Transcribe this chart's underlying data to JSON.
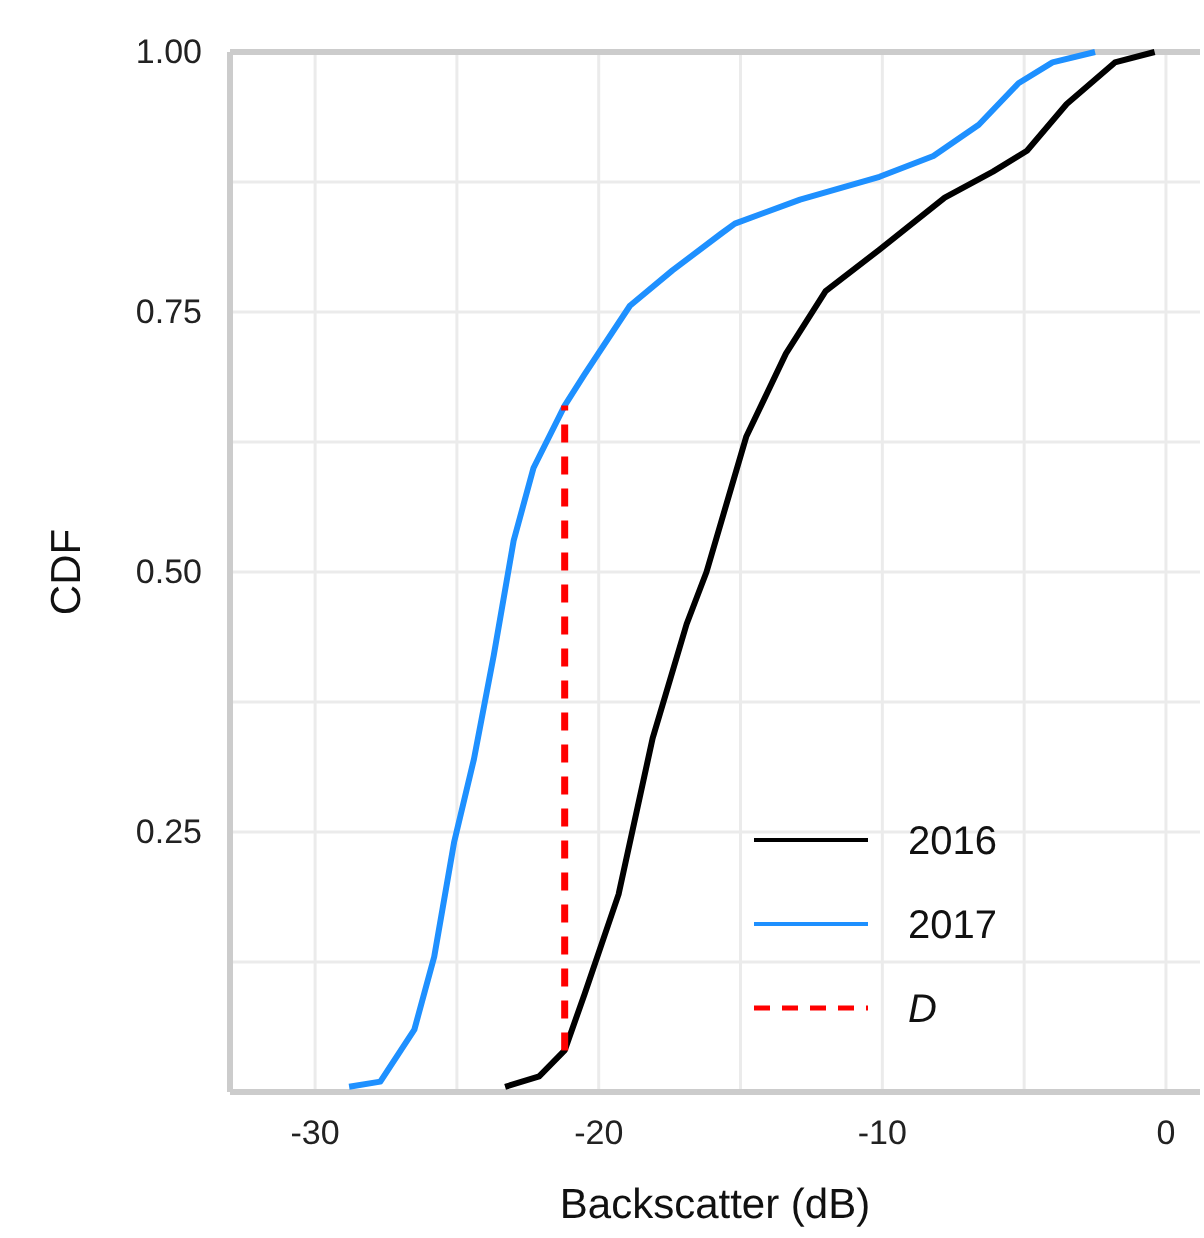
{
  "chart_data": {
    "type": "line",
    "xlabel": "Backscatter (dB)",
    "ylabel": "CDF",
    "xlim": [
      -33,
      1.2
    ],
    "ylim": [
      0,
      1
    ],
    "xticks": [
      -30,
      {
        "value": -25,
        "label": null
      },
      -20,
      {
        "value": -15,
        "label": null
      },
      -10,
      {
        "value": -5,
        "label": null
      },
      0
    ],
    "yticks": [
      {
        "value": 0.125,
        "label": null
      },
      {
        "value": 0.25,
        "label": "0.25"
      },
      {
        "value": 0.375,
        "label": null
      },
      {
        "value": 0.5,
        "label": "0.50"
      },
      {
        "value": 0.625,
        "label": null
      },
      {
        "value": 0.75,
        "label": "0.75"
      },
      {
        "value": 0.875,
        "label": null
      },
      {
        "value": 1,
        "label": "1.00"
      }
    ],
    "grid": true,
    "legend": "bottom right",
    "line_style": "solid",
    "series": [
      {
        "name": "2016",
        "color": "#000000",
        "x": [
          -23.3,
          -22.1,
          -21.2,
          -20.5,
          -19.3,
          -18.1,
          -16.9,
          -16.2,
          -14.8,
          -13.4,
          -12.0,
          -10.1,
          -7.8,
          -6.1,
          -4.9,
          -3.5,
          -1.8,
          -0.4
        ],
        "values": [
          0.005,
          0.015,
          0.04,
          0.094,
          0.19,
          0.34,
          0.45,
          0.5,
          0.63,
          0.71,
          0.77,
          0.81,
          0.86,
          0.885,
          0.905,
          0.95,
          0.99,
          1.0
        ]
      },
      {
        "name": "2017",
        "color": "#1e90ff",
        "x": [
          -28.8,
          -27.7,
          -26.5,
          -25.8,
          -25.1,
          -24.4,
          -23.7,
          -23.0,
          -22.3,
          -21.2,
          -20.5,
          -18.9,
          -17.4,
          -15.7,
          -15.2,
          -12.9,
          -10.1,
          -8.2,
          -6.6,
          -5.2,
          -4.0,
          -2.5
        ],
        "values": [
          0.005,
          0.01,
          0.06,
          0.13,
          0.24,
          0.32,
          0.42,
          0.53,
          0.6,
          0.66,
          0.69,
          0.756,
          0.79,
          0.825,
          0.835,
          0.858,
          0.88,
          0.9,
          0.93,
          0.97,
          0.99,
          1.0
        ]
      },
      {
        "name": "D",
        "color": "#ff0000",
        "line_style": "dashed",
        "x": [
          -21.2,
          -21.2
        ],
        "values": [
          0.04,
          0.66
        ]
      }
    ]
  }
}
